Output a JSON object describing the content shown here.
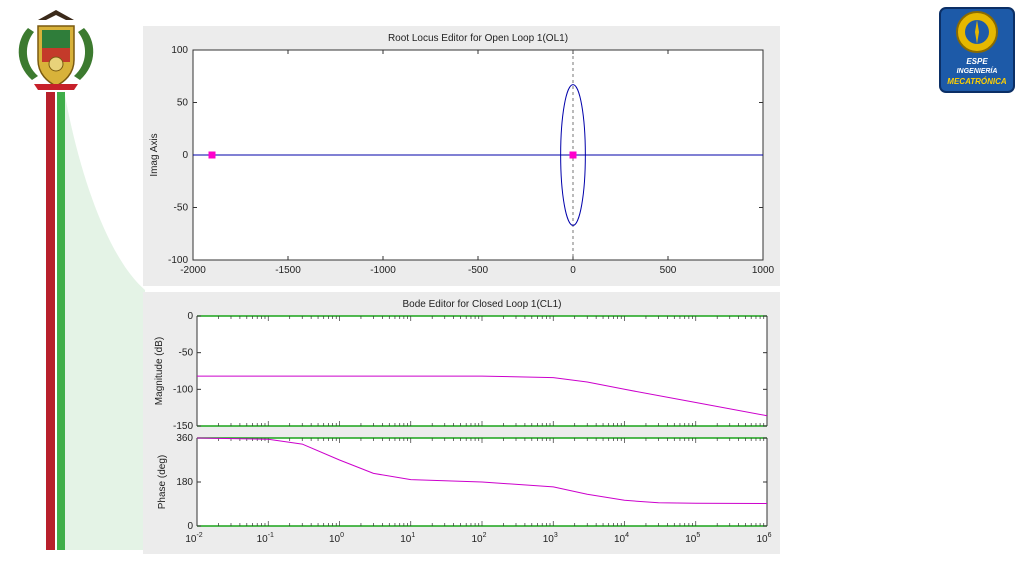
{
  "colors": {
    "red_bar": "#b8202b",
    "green_bar": "#3fae49",
    "locus_line": "#0000aa",
    "bode_curve": "#cc00cc",
    "marker": "#ff00cc",
    "bode_axis": "#1aa31a",
    "panel_bg": "#ececec"
  },
  "logos": {
    "left": {
      "icon": "university-crest-icon"
    },
    "right": {
      "icon": "espe-mecatronica-logo-icon",
      "text_line1": "ESPE",
      "text_line2": "INGENIERÍA",
      "text_line3": "MECATRÓNICA"
    }
  },
  "chart_data": [
    {
      "type": "line",
      "title": "Root Locus Editor for Open Loop 1(OL1)",
      "xlabel": "",
      "ylabel": "Imag Axis",
      "xlim": [
        -2000,
        1000
      ],
      "ylim": [
        -100,
        100
      ],
      "xticks": [
        -2000,
        -1500,
        -1000,
        -500,
        0,
        500,
        1000
      ],
      "yticks": [
        -100,
        -50,
        0,
        50,
        100
      ],
      "xtick_labels": [
        "-2000",
        "-1500",
        "-1000",
        "-500",
        "0",
        "500",
        "1000"
      ],
      "ytick_labels": [
        "-100",
        "-50",
        "0",
        "50",
        "100"
      ],
      "grid": false,
      "series": [
        {
          "kind": "real-axis-locus",
          "x": [
            -2000,
            1000
          ],
          "y": [
            0,
            0
          ]
        },
        {
          "kind": "ellipse-locus",
          "center": [
            0,
            0
          ],
          "rx": 65,
          "ry": 67
        }
      ],
      "markers": [
        {
          "x": -1900,
          "y": 0
        },
        {
          "x": 0,
          "y": 0
        }
      ],
      "reference_line": {
        "x": 0,
        "style": "dashed"
      }
    },
    {
      "type": "line",
      "title": "Bode Editor for Closed Loop 1(CL1)",
      "xscale": "log",
      "xlim": [
        0.01,
        1000000
      ],
      "xticks": [
        0.01,
        0.1,
        1,
        10,
        100,
        1000,
        10000,
        100000,
        1000000
      ],
      "xtick_labels": [
        {
          "base": "10",
          "exp": "-2"
        },
        {
          "base": "10",
          "exp": "-1"
        },
        {
          "base": "10",
          "exp": "0"
        },
        {
          "base": "10",
          "exp": "1"
        },
        {
          "base": "10",
          "exp": "2"
        },
        {
          "base": "10",
          "exp": "3"
        },
        {
          "base": "10",
          "exp": "4"
        },
        {
          "base": "10",
          "exp": "5"
        },
        {
          "base": "10",
          "exp": "6"
        }
      ],
      "magnitude": {
        "ylabel": "Magnitude (dB)",
        "ylim": [
          -150,
          0
        ],
        "yticks": [
          -150,
          -100,
          -50,
          0
        ],
        "ytick_labels": [
          "-150",
          "-100",
          "-50",
          "0"
        ],
        "x": [
          0.01,
          100,
          1000,
          3000,
          10000,
          100000,
          1000000
        ],
        "y": [
          -82,
          -82,
          -84,
          -90,
          -100,
          -118,
          -136
        ]
      },
      "phase": {
        "ylabel": "Phase (deg)",
        "ylim": [
          0,
          360
        ],
        "yticks": [
          0,
          180,
          360
        ],
        "ytick_labels": [
          "0",
          "180",
          "360"
        ],
        "x": [
          0.01,
          0.1,
          0.3,
          1,
          3,
          10,
          100,
          1000,
          3000,
          10000,
          30000,
          100000,
          1000000
        ],
        "y": [
          360,
          355,
          335,
          270,
          215,
          190,
          180,
          160,
          130,
          105,
          95,
          93,
          92
        ]
      }
    }
  ]
}
